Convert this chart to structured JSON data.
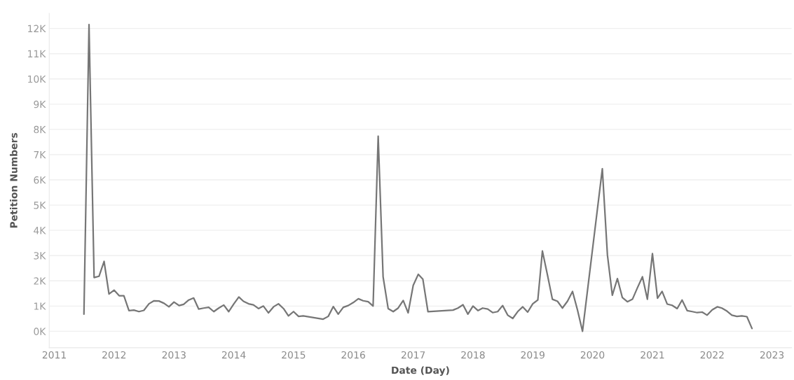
{
  "chart_data": {
    "type": "line",
    "xlabel": "Date (Day)",
    "ylabel": "Petition Numbers",
    "x": [
      "2011-07",
      "2011-08",
      "2011-09",
      "2011-10",
      "2011-11",
      "2011-12",
      "2012-01",
      "2012-02",
      "2012-03",
      "2012-04",
      "2012-05",
      "2012-06",
      "2012-07",
      "2012-08",
      "2012-09",
      "2012-10",
      "2012-11",
      "2012-12",
      "2013-01",
      "2013-02",
      "2013-03",
      "2013-04",
      "2013-05",
      "2013-06",
      "2013-07",
      "2013-08",
      "2013-09",
      "2013-10",
      "2013-11",
      "2013-12",
      "2014-01",
      "2014-02",
      "2014-03",
      "2014-04",
      "2014-05",
      "2014-06",
      "2014-07",
      "2014-08",
      "2014-09",
      "2014-10",
      "2014-11",
      "2014-12",
      "2015-01",
      "2015-02",
      "2015-03",
      "2015-07",
      "2015-08",
      "2015-09",
      "2015-10",
      "2015-11",
      "2015-12",
      "2016-01",
      "2016-02",
      "2016-03",
      "2016-04",
      "2016-05",
      "2016-06",
      "2016-07",
      "2016-08",
      "2016-09",
      "2016-10",
      "2016-11",
      "2016-12",
      "2017-01",
      "2017-02",
      "2017-03",
      "2017-04",
      "2017-09",
      "2017-10",
      "2017-11",
      "2017-12",
      "2018-01",
      "2018-02",
      "2018-03",
      "2018-04",
      "2018-05",
      "2018-06",
      "2018-07",
      "2018-08",
      "2018-09",
      "2018-10",
      "2018-11",
      "2018-12",
      "2019-01",
      "2019-02",
      "2019-03",
      "2019-04",
      "2019-05",
      "2019-06",
      "2019-07",
      "2019-08",
      "2019-09",
      "2019-10",
      "2019-11",
      "2020-03",
      "2020-04",
      "2020-05",
      "2020-06",
      "2020-07",
      "2020-08",
      "2020-09",
      "2020-10",
      "2020-11",
      "2020-12",
      "2021-01",
      "2021-02",
      "2021-03",
      "2021-04",
      "2021-05",
      "2021-06",
      "2021-07",
      "2021-08",
      "2021-09",
      "2021-10",
      "2021-11",
      "2021-12",
      "2022-01",
      "2022-02",
      "2022-03",
      "2022-04",
      "2022-05",
      "2022-06",
      "2022-07",
      "2022-08",
      "2022-09"
    ],
    "series": [
      {
        "color": "#767676",
        "values": [
          680,
          12150,
          2130,
          2180,
          2770,
          1480,
          1630,
          1410,
          1410,
          820,
          840,
          780,
          830,
          1090,
          1210,
          1200,
          1110,
          970,
          1160,
          1020,
          1070,
          1240,
          1320,
          880,
          920,
          950,
          780,
          920,
          1040,
          780,
          1080,
          1360,
          1190,
          1090,
          1050,
          900,
          1000,
          730,
          970,
          1090,
          900,
          610,
          780,
          590,
          610,
          480,
          590,
          980,
          680,
          950,
          1020,
          1140,
          1290,
          1210,
          1170,
          1000,
          7730,
          2160,
          900,
          780,
          920,
          1220,
          730,
          1820,
          2260,
          2060,
          780,
          840,
          920,
          1050,
          680,
          1000,
          820,
          920,
          880,
          740,
          780,
          1020,
          640,
          510,
          780,
          970,
          760,
          1090,
          1240,
          3180,
          2230,
          1270,
          1190,
          920,
          1190,
          1580,
          850,
          0,
          6440,
          3030,
          1430,
          2090,
          1340,
          1170,
          1270,
          1720,
          2160,
          1270,
          3080,
          1310,
          1580,
          1080,
          1030,
          900,
          1240,
          820,
          780,
          740,
          760,
          640,
          850,
          970,
          920,
          800,
          640,
          590,
          610,
          580,
          110
        ]
      }
    ],
    "xlim": [
      "2010-12",
      "2023-05"
    ],
    "xticks": [
      "2011",
      "2012",
      "2013",
      "2014",
      "2015",
      "2016",
      "2017",
      "2018",
      "2019",
      "2020",
      "2021",
      "2022",
      "2023"
    ],
    "ylim": [
      -650,
      12600
    ],
    "yticks": [
      {
        "value": 0,
        "label": "0K"
      },
      {
        "value": 1000,
        "label": "1K"
      },
      {
        "value": 2000,
        "label": "2K"
      },
      {
        "value": 3000,
        "label": "3K"
      },
      {
        "value": 4000,
        "label": "4K"
      },
      {
        "value": 5000,
        "label": "5K"
      },
      {
        "value": 6000,
        "label": "6K"
      },
      {
        "value": 7000,
        "label": "7K"
      },
      {
        "value": 8000,
        "label": "8K"
      },
      {
        "value": 9000,
        "label": "9K"
      },
      {
        "value": 10000,
        "label": "10K"
      },
      {
        "value": 11000,
        "label": "11K"
      },
      {
        "value": 12000,
        "label": "12K"
      }
    ],
    "grid": "y"
  }
}
